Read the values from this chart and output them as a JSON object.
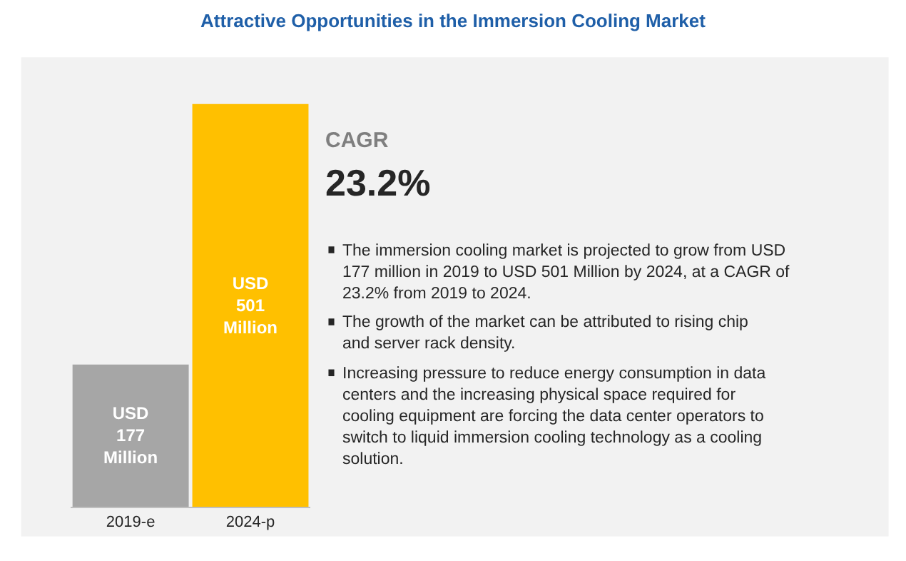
{
  "chart_data": {
    "type": "bar",
    "title": "Attractive Opportunities in the Immersion Cooling Market",
    "categories": [
      "2019-e",
      "2024-p"
    ],
    "values": [
      177,
      501
    ],
    "colors": [
      "#a6a6a6",
      "#ffc000"
    ],
    "value_labels": [
      "USD 177 Million",
      "USD 501 Million"
    ],
    "annotations": [
      "CAGR",
      "23.2%",
      "The immersion cooling market is projected to grow from USD 177 million in 2019 to USD 501 Million by 2024, at a CAGR of 23.2% from 2019 to 2024.",
      "The growth of the market can be attributed to rising chip and server rack density.",
      "Increasing pressure to reduce energy consumption in data centers and the increasing physical space required for cooling equipment are forcing the data center operators to switch to liquid immersion cooling technology as a cooling solution."
    ],
    "grid": false,
    "legend": false
  }
}
